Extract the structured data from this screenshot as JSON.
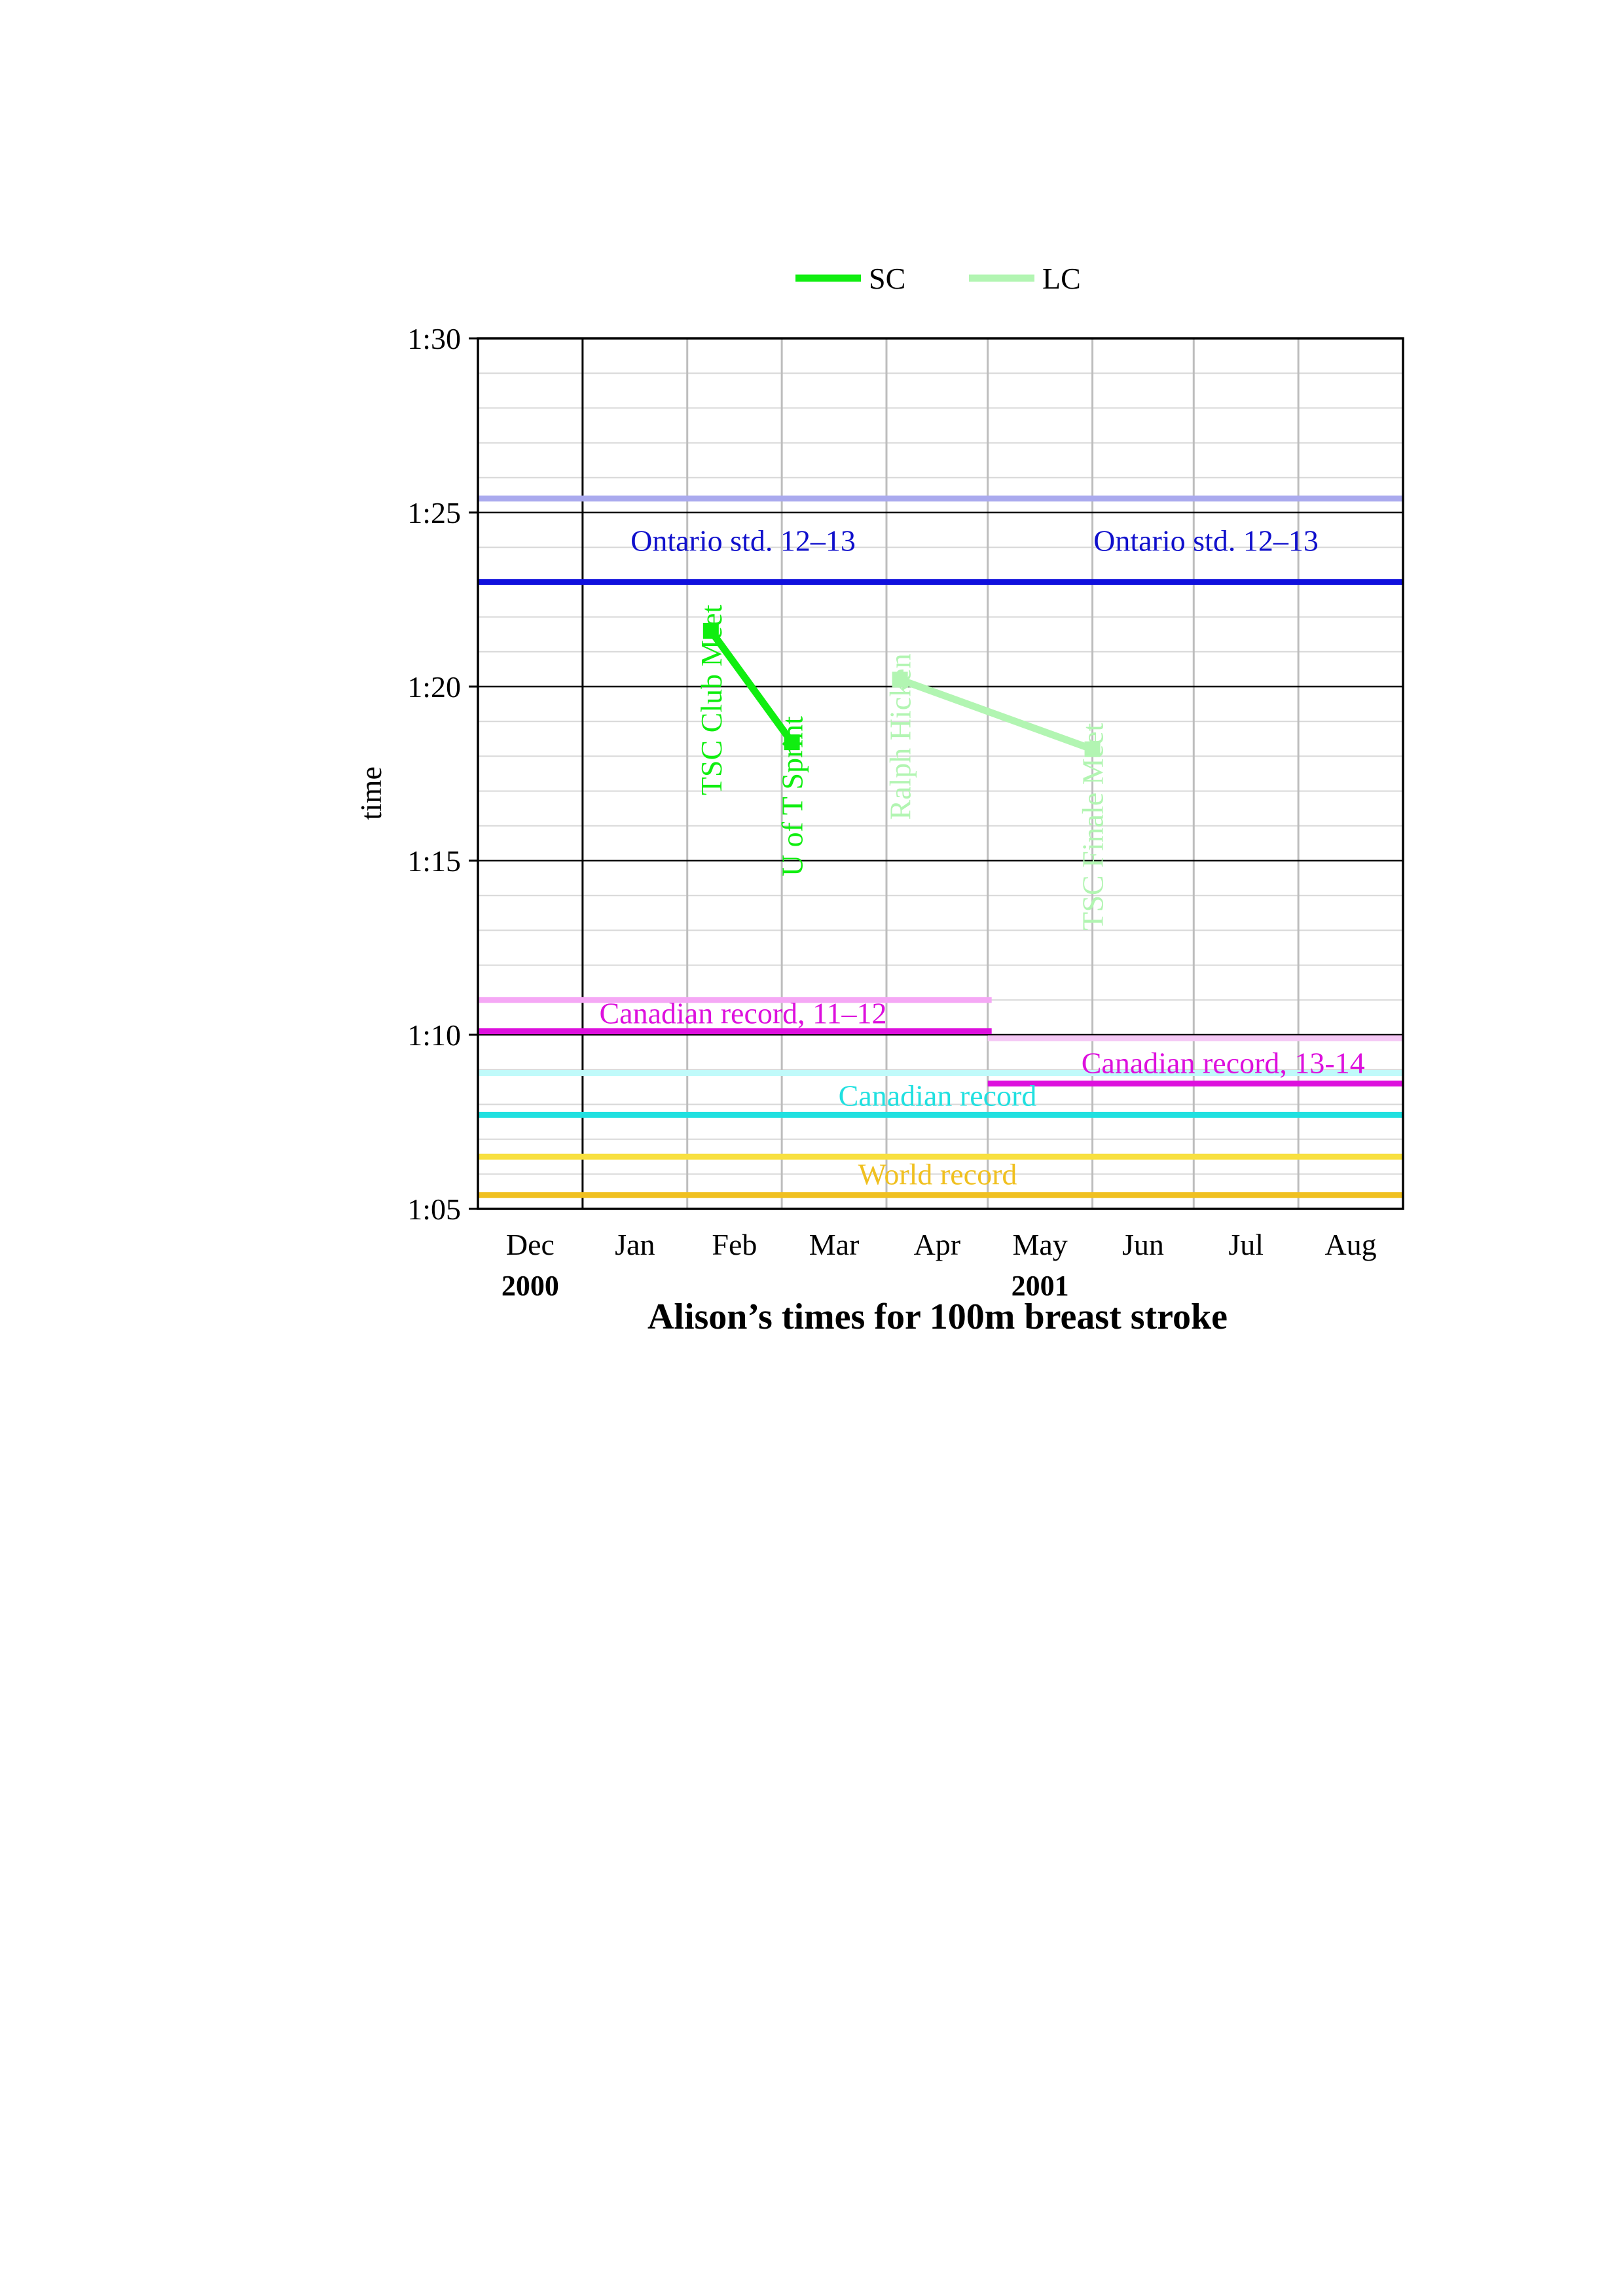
{
  "chart_data": {
    "type": "line",
    "title": "Alison’s times for 100m breast stroke",
    "ylabel": "time",
    "xlabel": "",
    "x_axis": {
      "months": [
        "Dec",
        "Jan",
        "Feb",
        "Mar",
        "Apr",
        "May",
        "Jun",
        "Jul",
        "Aug"
      ],
      "year_labels": [
        {
          "month": "Dec",
          "label": "2000"
        },
        {
          "month": "May",
          "label": "2001"
        }
      ],
      "range": [
        "2000-12-01",
        "2001-08-31"
      ]
    },
    "y_axis": {
      "unit": "m:ss",
      "min_seconds": 65,
      "max_seconds": 90,
      "major_step_seconds": 5,
      "minor_step_seconds": 1,
      "tick_labels": [
        "1:05",
        "1:10",
        "1:15",
        "1:20",
        "1:25",
        "1:30"
      ]
    },
    "grid": true,
    "legend": {
      "placement": "top",
      "entries": [
        {
          "name": "SC",
          "color": "#10ee10"
        },
        {
          "name": "LC",
          "color": "#b2f5b2"
        }
      ]
    },
    "series": [
      {
        "name": "SC",
        "color": "#10ee10",
        "points": [
          {
            "date": "2001-02-08",
            "seconds": 81.6,
            "label": "TSC Club Meet"
          },
          {
            "date": "2001-03-04",
            "seconds": 78.4,
            "label": "U of T Sprint"
          }
        ]
      },
      {
        "name": "LC",
        "color": "#b2f5b2",
        "points": [
          {
            "date": "2001-04-05",
            "seconds": 80.2,
            "label": "Ralph Hicken"
          },
          {
            "date": "2001-06-01",
            "seconds": 78.2,
            "label": "TSC Finale Meet"
          }
        ]
      }
    ],
    "reference_lines": [
      {
        "label": "",
        "seconds": 85.4,
        "from": "2000-12-01",
        "to": "2001-08-31",
        "color": "#aaaaee"
      },
      {
        "label": "Ontario std. 12–13",
        "seconds": 83.0,
        "from": "2000-12-01",
        "to": "2001-08-31",
        "color": "#1010dd"
      },
      {
        "label": "",
        "seconds": 71.0,
        "from": "2000-12-01",
        "to": "2001-05-01",
        "color": "#f5a8f5"
      },
      {
        "label": "Canadian record, 11–12",
        "seconds": 70.1,
        "from": "2000-12-01",
        "to": "2001-05-01",
        "color": "#dd10dd"
      },
      {
        "label": "",
        "seconds": 69.9,
        "from": "2001-05-01",
        "to": "2001-08-31",
        "color": "#f5c8f5"
      },
      {
        "label": "Canadian record, 13-14",
        "seconds": 68.6,
        "from": "2001-05-01",
        "to": "2001-08-31",
        "color": "#dd10dd"
      },
      {
        "label": "",
        "seconds": 68.9,
        "from": "2000-12-01",
        "to": "2001-08-31",
        "color": "#c0fafa"
      },
      {
        "label": "Canadian record",
        "seconds": 67.7,
        "from": "2000-12-01",
        "to": "2001-08-31",
        "color": "#20e0e0"
      },
      {
        "label": "",
        "seconds": 66.5,
        "from": "2000-12-01",
        "to": "2001-08-31",
        "color": "#f8e040"
      },
      {
        "label": "World record",
        "seconds": 65.4,
        "from": "2000-12-01",
        "to": "2001-08-31",
        "color": "#f0c020"
      }
    ]
  }
}
